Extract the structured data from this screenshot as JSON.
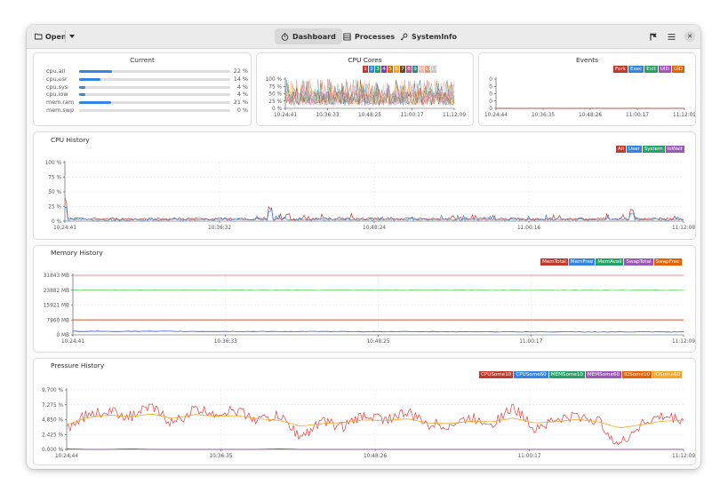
{
  "headerbar": {
    "open_label": "Open",
    "tabs": [
      {
        "label": "Dashboard",
        "icon": "stopwatch-icon",
        "active": true
      },
      {
        "label": "Processes",
        "icon": "list-icon",
        "active": false
      },
      {
        "label": "SystemInfo",
        "icon": "key-icon",
        "active": false
      }
    ]
  },
  "current": {
    "title": "Current",
    "rows": [
      {
        "label": "cpu.all",
        "value": "22 %",
        "level": 0.22
      },
      {
        "label": "cpu.usr",
        "value": "14 %",
        "level": 0.14
      },
      {
        "label": "cpu.sys",
        "value": "4 %",
        "level": 0.04
      },
      {
        "label": "cpu.iow",
        "value": "4 %",
        "level": 0.04
      },
      {
        "label": "mem.ram",
        "value": "21 %",
        "level": 0.21
      },
      {
        "label": "mem.swp",
        "value": "0 %",
        "level": 0.0
      }
    ],
    "bar_color": "#3584e4"
  },
  "cpu_cores": {
    "title": "CPU Cores",
    "legend": [
      "1",
      "2",
      "3",
      "4",
      "5",
      "6",
      "7",
      "8",
      "9",
      "10",
      "11",
      "12"
    ],
    "legend_colors": [
      "#c0392b",
      "#3584e4",
      "#26a269",
      "#7a3fa3",
      "#e66100",
      "#f5a623",
      "#6b4a2b",
      "#c64f87",
      "#2d8c7f",
      "#f4b8a0",
      "#e69a7d",
      "#c8c8c8"
    ]
  },
  "events": {
    "title": "Events",
    "legend": [
      "Fork",
      "Exec",
      "Exit",
      "UID",
      "GID"
    ],
    "legend_colors": [
      "#c0392b",
      "#3584e4",
      "#26a269",
      "#9b59b6",
      "#e66100"
    ]
  },
  "cpu_history": {
    "title": "CPU History",
    "legend": [
      "All",
      "User",
      "System",
      "IoWait"
    ],
    "legend_colors": [
      "#c0392b",
      "#3584e4",
      "#26a269",
      "#9b59b6"
    ]
  },
  "memory_history": {
    "title": "Memory History",
    "legend": [
      "MemTotal",
      "MemFree",
      "MemAvail",
      "SwapTotal",
      "SwapFree"
    ],
    "legend_colors": [
      "#c0392b",
      "#3584e4",
      "#26a269",
      "#9b59b6",
      "#e66100"
    ]
  },
  "pressure_history": {
    "title": "Pressure History",
    "legend": [
      "CPUSome10",
      "CPUSome60",
      "MEMSome10",
      "MEMSome60",
      "IOSome10",
      "IOSome60"
    ],
    "legend_colors": [
      "#c0392b",
      "#3584e4",
      "#26a269",
      "#9b59b6",
      "#e66100",
      "#f5a623"
    ]
  },
  "chart_data": [
    {
      "type": "line",
      "title": "CPU Cores",
      "x_ticks": [
        "10:24:41",
        "10:36:33",
        "10:48:25",
        "11:00:17",
        "11:12:09"
      ],
      "y_ticks": [
        "100 %",
        "75 %",
        "50 %",
        "25 %",
        "0 %"
      ],
      "ylim": [
        0,
        100
      ],
      "series_count": 12,
      "typical_range": [
        10,
        100
      ]
    },
    {
      "type": "line",
      "title": "Events",
      "x_ticks": [
        "10:24:44",
        "10:36:35",
        "10:48:26",
        "11:00:17",
        "11:12:09"
      ],
      "y_ticks": [
        "0",
        "0",
        "0",
        "0",
        "0"
      ],
      "series": [
        {
          "name": "Fork",
          "values": [
            0,
            0
          ]
        }
      ]
    },
    {
      "type": "line",
      "title": "CPU History",
      "x_ticks": [
        "10:24:41",
        "10:36:32",
        "10:48:24",
        "11:00:16",
        "11:12:08"
      ],
      "y_ticks": [
        "100 %",
        "75 %",
        "50 %",
        "25 %",
        "0 %"
      ],
      "ylim": [
        0,
        100
      ],
      "series": [
        {
          "name": "All",
          "baseline": 3,
          "spikes": [
            {
              "at": 0.0,
              "value": 42
            },
            {
              "at": 0.331,
              "value": 25
            },
            {
              "at": 0.36,
              "value": 15
            },
            {
              "at": 0.917,
              "value": 20
            }
          ]
        },
        {
          "name": "User",
          "baseline": 2,
          "spikes": [
            {
              "at": 0.0,
              "value": 32
            },
            {
              "at": 0.331,
              "value": 22
            },
            {
              "at": 0.917,
              "value": 14
            }
          ]
        }
      ]
    },
    {
      "type": "line",
      "title": "Memory History",
      "x_ticks": [
        "10:24:41",
        "10:36:33",
        "10:48:25",
        "11:00:17",
        "11:12:09"
      ],
      "y_ticks": [
        "31843 MB",
        "23882 MB",
        "15921 MB",
        "7960 MB",
        "0 MB"
      ],
      "ylim": [
        0,
        31843
      ],
      "series": [
        {
          "name": "MemTotal",
          "values": [
            31843,
            31843
          ]
        },
        {
          "name": "MemFree",
          "values": [
            1900,
            1500
          ]
        },
        {
          "name": "MemAvail",
          "values": [
            24000,
            23900
          ]
        },
        {
          "name": "SwapTotal",
          "values": [
            8000,
            8000
          ]
        },
        {
          "name": "SwapFree",
          "values": [
            8000,
            8000
          ]
        }
      ]
    },
    {
      "type": "line",
      "title": "Pressure History",
      "x_ticks": [
        "10:24:44",
        "10:36:35",
        "10:48:26",
        "11:00:17",
        "11:12:09"
      ],
      "y_ticks": [
        "9.700 %",
        "7.275 %",
        "4.850 %",
        "2.425 %",
        "0.000 %"
      ],
      "ylim": [
        0,
        9.7
      ],
      "series": [
        {
          "name": "CPUSome10",
          "values": [
            3.5,
            5.8,
            6.2,
            5.4,
            6.9,
            4.2,
            6.5,
            5.9,
            6.3,
            4.8,
            5.5,
            2.0,
            4.6,
            3.7,
            5.6,
            4.9,
            6.0,
            4.1,
            3.9,
            5.1,
            4.3,
            6.8,
            3.5,
            4.8,
            5.4,
            4.6,
            0.6,
            4.2,
            5.3,
            4.8
          ]
        },
        {
          "name": "CPUSome60",
          "values": [
            4.0,
            5.2,
            5.6,
            5.3,
            5.8,
            5.0,
            5.7,
            5.4,
            5.5,
            5.0,
            4.7,
            3.8,
            4.2,
            4.4,
            4.8,
            4.7,
            5.0,
            4.3,
            4.2,
            4.6,
            4.5,
            5.1,
            4.3,
            4.5,
            4.9,
            4.5,
            3.5,
            4.0,
            4.6,
            4.7
          ]
        },
        {
          "name": "IOSome10",
          "values": [
            0.1,
            0.0,
            0.0,
            0.1,
            0.0,
            0.0,
            0.0,
            0.0,
            0.0,
            0.0,
            0.1,
            0.0,
            0.0,
            0.0,
            0.0,
            0.0,
            0.0,
            0.0,
            0.0,
            0.0,
            0.0,
            0.0,
            0.0,
            0.0,
            0.0,
            0.0,
            0.0,
            0.0,
            0.0,
            0.0
          ]
        }
      ]
    }
  ]
}
